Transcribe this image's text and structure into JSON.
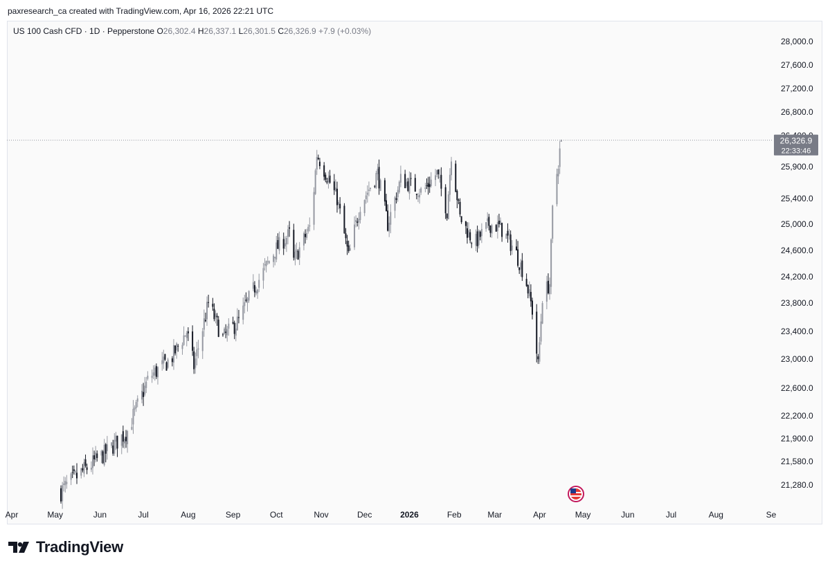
{
  "header": {
    "text": "paxresearch_ca created with TradingView.com, Apr 16, 2026 22:21 UTC"
  },
  "legend": {
    "symbol": "US 100 Cash CFD · 1D · Pepperstone",
    "o_label": "O",
    "o_value": "26,302.4",
    "h_label": "H",
    "h_value": "26,337.1",
    "l_label": "L",
    "l_value": "26,301.5",
    "c_label": "C",
    "c_value": "26,326.9",
    "change": "+7.9 (+0.03%)"
  },
  "price_tag": {
    "price": "26,326.9",
    "countdown": "22:33:46"
  },
  "footer": {
    "brand": "TradingView"
  },
  "icons": {
    "logo": "tradingview-logo-icon",
    "flag": "us-flag-event-icon"
  },
  "colors": {
    "candle": "#131722",
    "candle_faded": "#9598a1",
    "grid_bg": "#fafafa",
    "tag_bg": "#787b86"
  },
  "chart_data": {
    "type": "candlestick",
    "title": "",
    "xlabel": "",
    "ylabel": "",
    "y_ticks": [
      "28,000.0",
      "27,600.0",
      "27,200.0",
      "26,800.0",
      "26,400.0",
      "25,900.0",
      "25,400.0",
      "25,000.0",
      "24,600.0",
      "24,200.0",
      "23,800.0",
      "23,400.0",
      "23,000.0",
      "22,600.0",
      "22,200.0",
      "21,900.0",
      "21,580.0",
      "21,280.0"
    ],
    "x_ticks": [
      "Apr",
      "May",
      "Jun",
      "Jul",
      "Aug",
      "Sep",
      "Oct",
      "Nov",
      "Dec",
      "2026",
      "Feb",
      "Mar",
      "Apr",
      "May",
      "Jun",
      "Jul",
      "Aug",
      "Se"
    ],
    "last_price": 26326.9,
    "anchors": [
      {
        "date": "2025-05-05",
        "price": 21200
      },
      {
        "date": "2025-05-20",
        "price": 21450
      },
      {
        "date": "2025-06-05",
        "price": 21700
      },
      {
        "date": "2025-06-20",
        "price": 22000
      },
      {
        "date": "2025-07-05",
        "price": 22750
      },
      {
        "date": "2025-07-20",
        "price": 23000
      },
      {
        "date": "2025-07-31",
        "price": 23400
      },
      {
        "date": "2025-08-05",
        "price": 22900
      },
      {
        "date": "2025-08-15",
        "price": 23800
      },
      {
        "date": "2025-08-25",
        "price": 23300
      },
      {
        "date": "2025-09-05",
        "price": 23550
      },
      {
        "date": "2025-09-15",
        "price": 24000
      },
      {
        "date": "2025-09-30",
        "price": 24600
      },
      {
        "date": "2025-10-10",
        "price": 24850
      },
      {
        "date": "2025-10-10",
        "price": 24300
      },
      {
        "date": "2025-10-25",
        "price": 25000
      },
      {
        "date": "2025-10-29",
        "price": 26100
      },
      {
        "date": "2025-11-05",
        "price": 25750
      },
      {
        "date": "2025-11-12",
        "price": 25400
      },
      {
        "date": "2025-11-20",
        "price": 24500
      },
      {
        "date": "2025-11-28",
        "price": 25300
      },
      {
        "date": "2025-12-10",
        "price": 25800
      },
      {
        "date": "2025-12-17",
        "price": 25000
      },
      {
        "date": "2025-12-26",
        "price": 25700
      },
      {
        "date": "2026-01-10",
        "price": 25500
      },
      {
        "date": "2026-01-20",
        "price": 25800
      },
      {
        "date": "2026-01-27",
        "price": 25200
      },
      {
        "date": "2026-01-30",
        "price": 26100
      },
      {
        "date": "2026-02-05",
        "price": 25100
      },
      {
        "date": "2026-02-15",
        "price": 24700
      },
      {
        "date": "2026-02-25",
        "price": 25000
      },
      {
        "date": "2026-03-05",
        "price": 24950
      },
      {
        "date": "2026-03-15",
        "price": 24600
      },
      {
        "date": "2026-03-22",
        "price": 24200
      },
      {
        "date": "2026-03-27",
        "price": 23700
      },
      {
        "date": "2026-03-31",
        "price": 22900
      },
      {
        "date": "2026-04-03",
        "price": 23900
      },
      {
        "date": "2026-04-08",
        "price": 24100
      },
      {
        "date": "2026-04-10",
        "price": 25200
      },
      {
        "date": "2026-04-13",
        "price": 25800
      },
      {
        "date": "2026-04-16",
        "price": 26326.9
      }
    ]
  }
}
